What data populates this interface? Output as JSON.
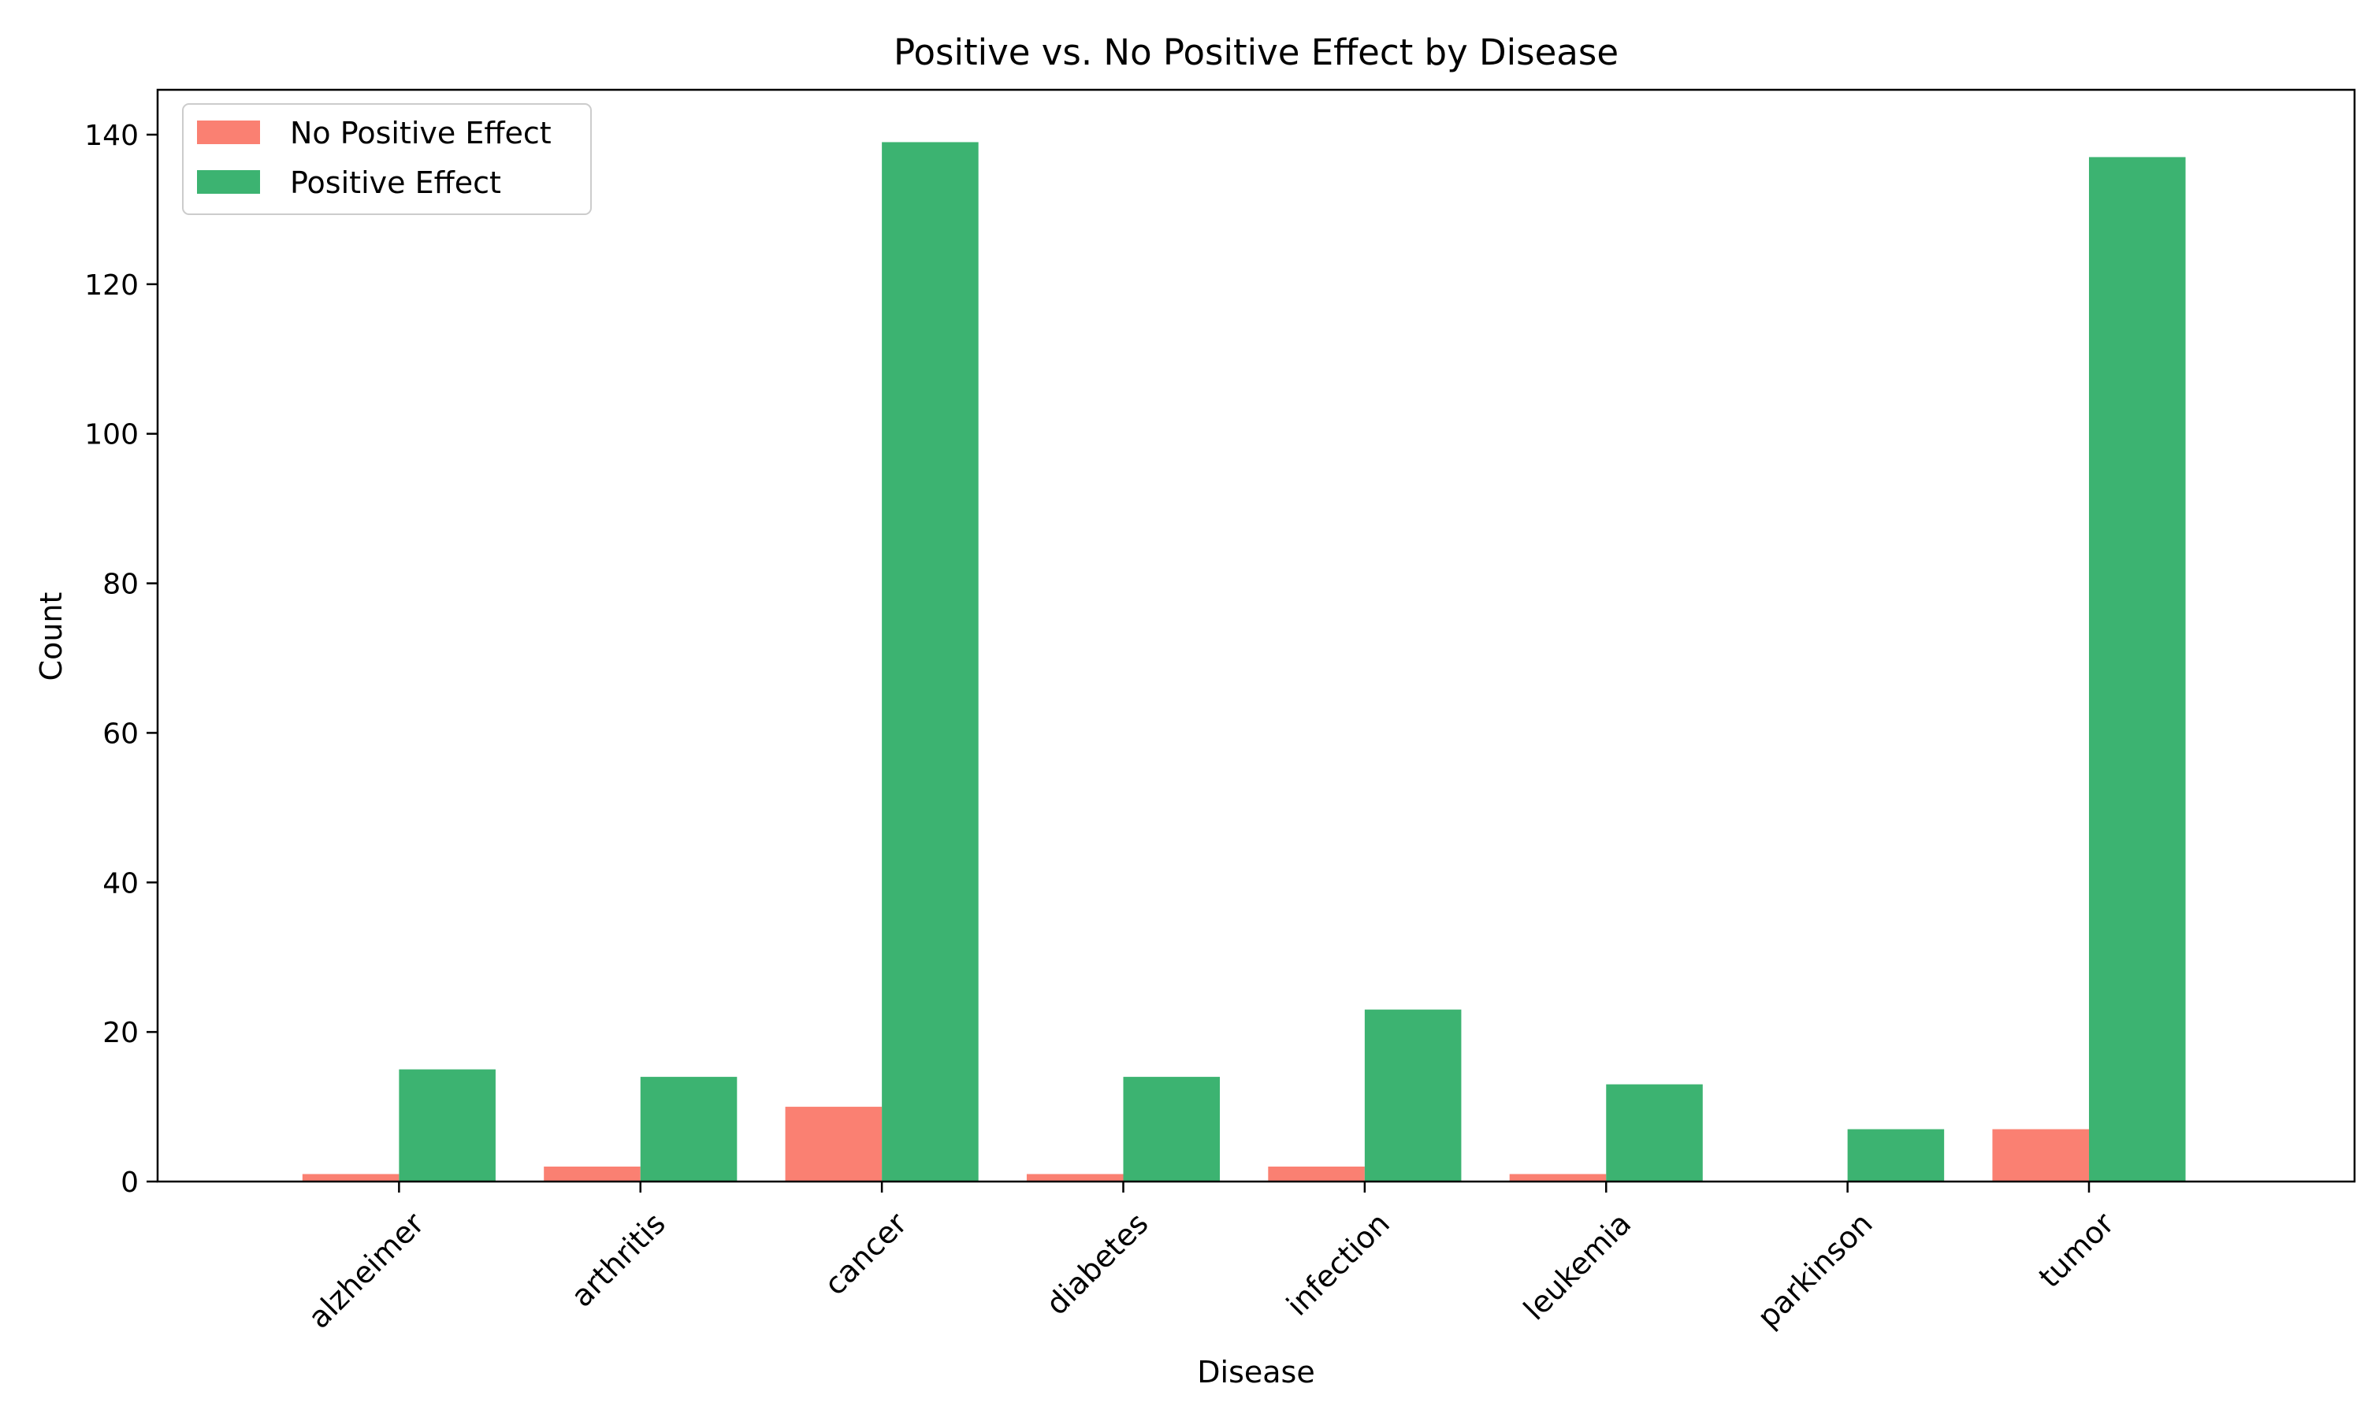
{
  "chart_data": {
    "type": "bar",
    "title": "Positive vs. No Positive Effect by Disease",
    "xlabel": "Disease",
    "ylabel": "Count",
    "categories": [
      "alzheimer",
      "arthritis",
      "cancer",
      "diabetes",
      "infection",
      "leukemia",
      "parkinson",
      "tumor"
    ],
    "series": [
      {
        "name": "No Positive Effect",
        "color": "#FA8072",
        "values": [
          1,
          2,
          10,
          1,
          2,
          1,
          0,
          7
        ]
      },
      {
        "name": "Positive Effect",
        "color": "#3CB371",
        "values": [
          15,
          14,
          139,
          14,
          23,
          13,
          7,
          137
        ]
      }
    ],
    "ylim": [
      0,
      146
    ],
    "yticks": [
      0,
      20,
      40,
      60,
      80,
      100,
      120,
      140
    ],
    "legend_position": "top-left",
    "grid": false
  }
}
